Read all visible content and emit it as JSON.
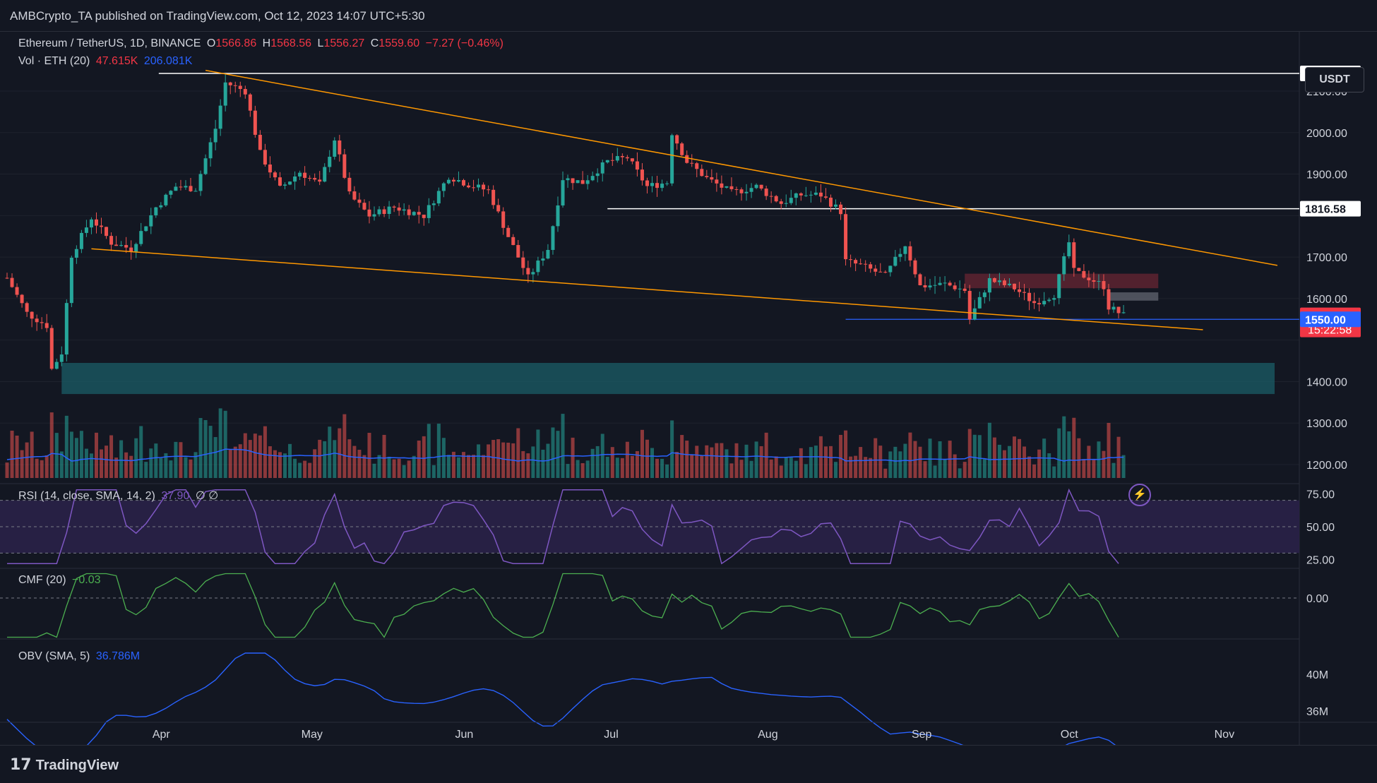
{
  "header": {
    "published": "AMBCrypto_TA published on TradingView.com, Oct 12, 2023 14:07 UTC+5:30"
  },
  "symbol": {
    "name": "Ethereum / TetherUS, 1D, BINANCE",
    "o_label": "O",
    "o": "1566.86",
    "h_label": "H",
    "h": "1568.56",
    "l_label": "L",
    "l": "1556.27",
    "c_label": "C",
    "c": "1559.60",
    "change": "−7.27 (−0.46%)"
  },
  "volume_legend": {
    "label": "Vol · ETH (20)",
    "value": "47.615K",
    "ma": "206.081K"
  },
  "rsi_legend": {
    "label": "RSI (14, close, SMA, 14, 2)",
    "value": "37.90",
    "extra": "∅  ∅"
  },
  "cmf_legend": {
    "label": "CMF (20)",
    "value": "−0.03"
  },
  "obv_legend": {
    "label": "OBV (SMA, 5)",
    "value": "36.786M"
  },
  "currency_button": "USDT",
  "footer": {
    "brand": "TradingView",
    "mark": "17"
  },
  "colors": {
    "up": "#26a69a",
    "down": "#ef5350",
    "trend": "#ff9800",
    "rsi": "#7e57c2",
    "cmf": "#4caf50",
    "obv": "#2962ff",
    "volume_ma": "#2962ff"
  },
  "chart_data": {
    "type": "candlestick",
    "price_axis": {
      "ticks": [
        1200,
        1300,
        1400,
        1500,
        1600,
        1700,
        1800,
        1900,
        2000,
        2100
      ],
      "tick_labels": [
        "1200.00",
        "1300.00",
        "1400.00",
        "",
        "1600.00",
        "1700.00",
        "",
        "1900.00",
        "2000.00",
        "2100.00"
      ]
    },
    "x_axis": {
      "labels": [
        "Apr",
        "May",
        "Jun",
        "Jul",
        "Aug",
        "Sep",
        "Oct",
        "Nov"
      ],
      "dates": [
        "2023-04-01",
        "2023-05-01",
        "2023-06-01",
        "2023-07-01",
        "2023-08-01",
        "2023-09-01",
        "2023-10-01",
        "2023-11-01"
      ]
    },
    "date_range": [
      "2023-03-01",
      "2023-11-15"
    ],
    "price_labels": [
      {
        "value": 2142.54,
        "text": "2142.54",
        "style": "white"
      },
      {
        "value": 1816.58,
        "text": "1816.58",
        "style": "white"
      },
      {
        "value": 1559.6,
        "text": "1559.60",
        "style": "red"
      },
      {
        "value": 1550.0,
        "text": "1550.00",
        "style": "blue"
      }
    ],
    "countdown": "15:22:58",
    "closes_sampled": [
      [
        "2023-03-01",
        1650
      ],
      [
        "2023-03-05",
        1565
      ],
      [
        "2023-03-09",
        1535
      ],
      [
        "2023-03-10",
        1430
      ],
      [
        "2023-03-12",
        1470
      ],
      [
        "2023-03-14",
        1705
      ],
      [
        "2023-03-18",
        1795
      ],
      [
        "2023-03-22",
        1735
      ],
      [
        "2023-03-26",
        1720
      ],
      [
        "2023-03-31",
        1820
      ],
      [
        "2023-04-04",
        1870
      ],
      [
        "2023-04-08",
        1865
      ],
      [
        "2023-04-12",
        2010
      ],
      [
        "2023-04-14",
        2120
      ],
      [
        "2023-04-18",
        2100
      ],
      [
        "2023-04-21",
        1950
      ],
      [
        "2023-04-25",
        1865
      ],
      [
        "2023-04-29",
        1905
      ],
      [
        "2023-05-03",
        1875
      ],
      [
        "2023-05-06",
        1985
      ],
      [
        "2023-05-09",
        1850
      ],
      [
        "2023-05-13",
        1800
      ],
      [
        "2023-05-18",
        1820
      ],
      [
        "2023-05-24",
        1800
      ],
      [
        "2023-05-29",
        1895
      ],
      [
        "2023-06-02",
        1875
      ],
      [
        "2023-06-06",
        1860
      ],
      [
        "2023-06-10",
        1750
      ],
      [
        "2023-06-14",
        1650
      ],
      [
        "2023-06-18",
        1720
      ],
      [
        "2023-06-21",
        1890
      ],
      [
        "2023-06-25",
        1880
      ],
      [
        "2023-06-30",
        1930
      ],
      [
        "2023-07-04",
        1940
      ],
      [
        "2023-07-08",
        1870
      ],
      [
        "2023-07-12",
        1880
      ],
      [
        "2023-07-13",
        2000
      ],
      [
        "2023-07-16",
        1930
      ],
      [
        "2023-07-20",
        1890
      ],
      [
        "2023-07-25",
        1855
      ],
      [
        "2023-07-30",
        1870
      ],
      [
        "2023-08-04",
        1830
      ],
      [
        "2023-08-08",
        1850
      ],
      [
        "2023-08-12",
        1850
      ],
      [
        "2023-08-16",
        1810
      ],
      [
        "2023-08-17",
        1690
      ],
      [
        "2023-08-20",
        1680
      ],
      [
        "2023-08-25",
        1655
      ],
      [
        "2023-08-29",
        1730
      ],
      [
        "2023-09-01",
        1630
      ],
      [
        "2023-09-06",
        1635
      ],
      [
        "2023-09-10",
        1620
      ],
      [
        "2023-09-11",
        1550
      ],
      [
        "2023-09-15",
        1645
      ],
      [
        "2023-09-20",
        1625
      ],
      [
        "2023-09-24",
        1590
      ],
      [
        "2023-09-28",
        1610
      ],
      [
        "2023-10-01",
        1735
      ],
      [
        "2023-10-02",
        1665
      ],
      [
        "2023-10-05",
        1650
      ],
      [
        "2023-10-08",
        1630
      ],
      [
        "2023-10-09",
        1580
      ],
      [
        "2023-10-12",
        1559.6
      ]
    ]
  }
}
